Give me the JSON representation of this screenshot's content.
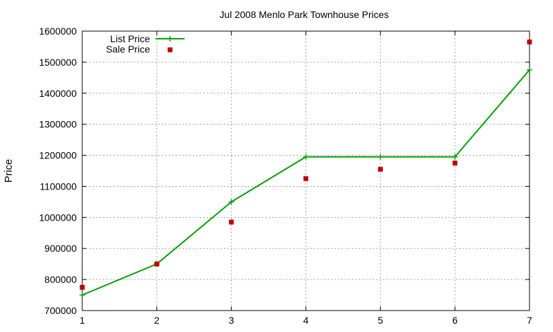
{
  "chart_data": {
    "type": "line",
    "title": "Jul 2008 Menlo Park Townhouse Prices",
    "xlabel": "",
    "ylabel": "Price",
    "xlim": [
      1,
      7
    ],
    "ylim": [
      700000,
      1600000
    ],
    "x_ticks": [
      1,
      2,
      3,
      4,
      5,
      6,
      7
    ],
    "y_ticks": [
      700000,
      800000,
      900000,
      1000000,
      1100000,
      1200000,
      1300000,
      1400000,
      1500000,
      1600000
    ],
    "grid": true,
    "legend_position": "top-left",
    "series": [
      {
        "name": "List Price",
        "style": "line-with-plus-markers",
        "color": "#00a000",
        "x": [
          1,
          2,
          3,
          4,
          5,
          6,
          7
        ],
        "y": [
          750000,
          850000,
          1050000,
          1195000,
          1195000,
          1195000,
          1475000
        ]
      },
      {
        "name": "Sale Price",
        "style": "square-markers",
        "color": "#c00000",
        "x": [
          1,
          2,
          3,
          4,
          5,
          6,
          7
        ],
        "y": [
          775000,
          850000,
          985000,
          1125000,
          1155000,
          1175000,
          1565000
        ]
      }
    ]
  }
}
